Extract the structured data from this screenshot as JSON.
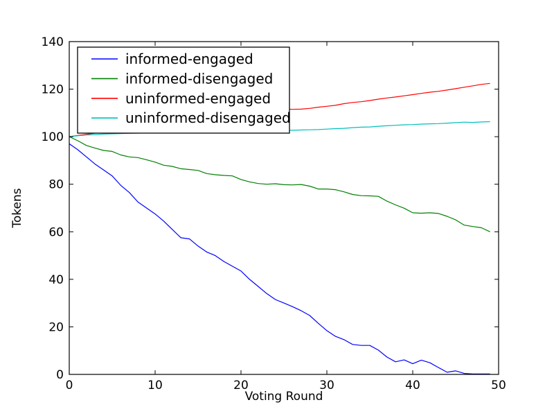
{
  "figure": {
    "background": "#ffffff",
    "axes_edge_color": "#000000",
    "legend_background": "#ffffff",
    "legend_border_color": "#000000"
  },
  "chart_data": {
    "type": "line",
    "title": "",
    "xlabel": "Voting Round",
    "ylabel": "Tokens",
    "xlim": [
      0,
      50
    ],
    "ylim": [
      0,
      140
    ],
    "xticks": [
      0,
      10,
      20,
      30,
      40,
      50
    ],
    "yticks": [
      0,
      20,
      40,
      60,
      80,
      100,
      120,
      140
    ],
    "grid": false,
    "legend_position": "upper-left",
    "x": [
      0,
      1,
      2,
      3,
      4,
      5,
      6,
      7,
      8,
      9,
      10,
      11,
      12,
      13,
      14,
      15,
      16,
      17,
      18,
      19,
      20,
      21,
      22,
      23,
      24,
      25,
      26,
      27,
      28,
      29,
      30,
      31,
      32,
      33,
      34,
      35,
      36,
      37,
      38,
      39,
      40,
      41,
      42,
      43,
      44,
      45,
      46,
      47,
      48,
      49
    ],
    "series": [
      {
        "name": "informed-engaged",
        "color": "#0000ff",
        "values": [
          97,
          94.5,
          91.5,
          88.5,
          86,
          83.5,
          79.5,
          76.5,
          72.5,
          70,
          67.5,
          64.5,
          61,
          57.5,
          57,
          54,
          51.5,
          50,
          47.5,
          45.5,
          43.5,
          40,
          37,
          34,
          31.5,
          30,
          28.5,
          26.8,
          24.8,
          21.5,
          18.4,
          16,
          14.6,
          12.6,
          12.2,
          12.2,
          10.2,
          7.3,
          5.3,
          6.1,
          4.5,
          6,
          4.9,
          2.9,
          0.9,
          1.5,
          0.4,
          0.2,
          0.2,
          0.2
        ]
      },
      {
        "name": "informed-disengaged",
        "color": "#008000",
        "values": [
          100,
          98.3,
          96.3,
          95.2,
          94.2,
          93.8,
          92.3,
          91.5,
          91.2,
          90.3,
          89.3,
          88,
          87.5,
          86.5,
          86.2,
          85.8,
          84.5,
          84,
          83.7,
          83.5,
          82,
          81,
          80.3,
          80,
          80.2,
          79.8,
          79.7,
          79.9,
          79.2,
          78,
          78,
          77.7,
          76.8,
          75.7,
          75.2,
          75.1,
          74.9,
          72.9,
          71.3,
          69.9,
          68,
          67.8,
          68,
          67.7,
          66.5,
          65,
          62.8,
          62.2,
          61.7,
          60
        ]
      },
      {
        "name": "uninformed-engaged",
        "color": "#ff0000",
        "values": [
          100,
          100.5,
          101,
          101.5,
          102,
          102.5,
          103.1,
          103.6,
          104.1,
          104.7,
          105.2,
          105.7,
          106.2,
          106.7,
          107.2,
          107.7,
          108.2,
          108.6,
          109.1,
          109.5,
          110,
          110.4,
          110.8,
          111.1,
          111.4,
          111.6,
          111.5,
          111.6,
          111.9,
          112.4,
          112.8,
          113.2,
          113.9,
          114.4,
          114.7,
          115.2,
          115.8,
          116.3,
          116.7,
          117.2,
          117.7,
          118.2,
          118.7,
          119.1,
          119.6,
          120.2,
          120.8,
          121.4,
          122,
          122.4
        ]
      },
      {
        "name": "uninformed-disengaged",
        "color": "#00bfbf",
        "values": [
          100,
          100.4,
          100.7,
          100.9,
          101.1,
          101.2,
          101.3,
          101.4,
          101.5,
          101.6,
          101.7,
          101.8,
          101.9,
          102,
          102,
          102.1,
          102.2,
          102.2,
          102.3,
          102.3,
          102.4,
          102.4,
          102.5,
          102.5,
          102.6,
          102.6,
          102.7,
          102.8,
          102.9,
          103,
          103.2,
          103.4,
          103.5,
          103.8,
          104,
          104.1,
          104.4,
          104.6,
          104.8,
          105,
          105.1,
          105.3,
          105.4,
          105.5,
          105.7,
          105.9,
          106.1,
          106,
          106.2,
          106.3
        ]
      }
    ]
  }
}
